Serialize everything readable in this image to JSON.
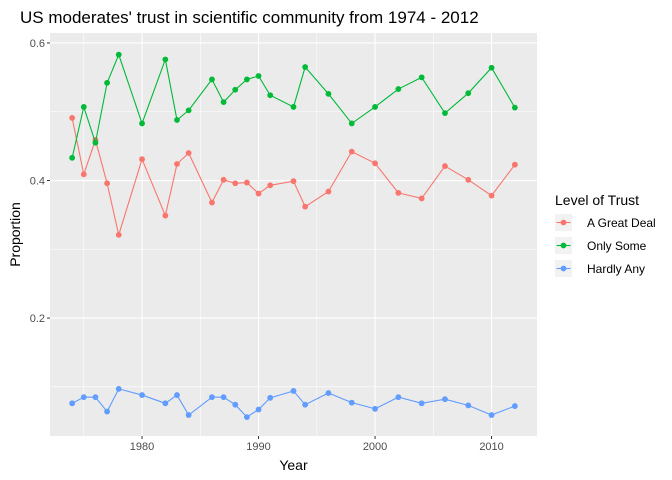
{
  "chart_data": {
    "type": "line",
    "title": "US moderates' trust in scientific community from 1974 - 2012",
    "xlabel": "Year",
    "ylabel": "Proportion",
    "xlim": [
      1972.1,
      2013.9
    ],
    "ylim": [
      0.0285,
      0.6145
    ],
    "x_ticks": [
      1980,
      1990,
      2000,
      2010
    ],
    "y_ticks": [
      0.2,
      0.4,
      0.6
    ],
    "y_tick_labels": [
      "0.2",
      "0.4",
      "0.6"
    ],
    "grid": true,
    "legend_position": "right",
    "legend_title": "Level of Trust",
    "x": [
      1974,
      1975,
      1976,
      1977,
      1978,
      1980,
      1982,
      1983,
      1984,
      1986,
      1987,
      1988,
      1989,
      1990,
      1991,
      1993,
      1994,
      1996,
      1998,
      2000,
      2002,
      2004,
      2006,
      2008,
      2010,
      2012
    ],
    "series": [
      {
        "name": "A Great Deal",
        "color": "#F8766D",
        "values": [
          0.491,
          0.409,
          0.459,
          0.396,
          0.321,
          0.431,
          0.349,
          0.424,
          0.44,
          0.368,
          0.401,
          0.396,
          0.397,
          0.381,
          0.393,
          0.399,
          0.362,
          0.384,
          0.442,
          0.425,
          0.382,
          0.374,
          0.421,
          0.401,
          0.378,
          0.423
        ]
      },
      {
        "name": "Only Some",
        "color": "#00BA38",
        "values": [
          0.433,
          0.507,
          0.455,
          0.542,
          0.583,
          0.483,
          0.576,
          0.488,
          0.502,
          0.547,
          0.514,
          0.532,
          0.547,
          0.552,
          0.524,
          0.507,
          0.565,
          0.526,
          0.483,
          0.507,
          0.533,
          0.55,
          0.498,
          0.527,
          0.564,
          0.506
        ]
      },
      {
        "name": "Hardly Any",
        "color": "#619CFF",
        "values": [
          0.076,
          0.085,
          0.085,
          0.064,
          0.097,
          0.088,
          0.076,
          0.088,
          0.059,
          0.085,
          0.085,
          0.074,
          0.056,
          0.067,
          0.084,
          0.094,
          0.074,
          0.091,
          0.077,
          0.068,
          0.085,
          0.076,
          0.082,
          0.073,
          0.059,
          0.072
        ]
      }
    ]
  }
}
